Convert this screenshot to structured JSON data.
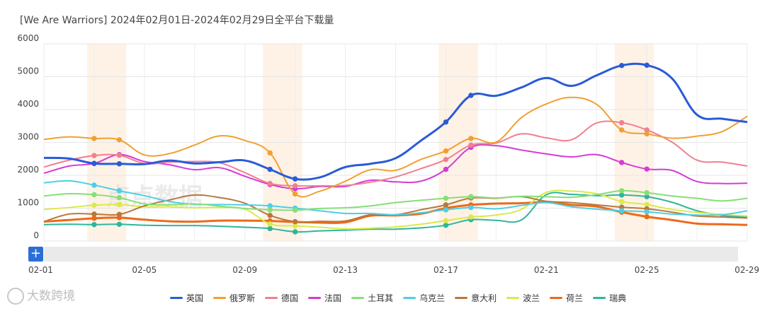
{
  "chart_data": {
    "type": "line",
    "title": "[We Are Warriors]  2024年02月01日-2024年02月29日全平台下载量",
    "xlabel": "",
    "ylabel": "",
    "ylim": [
      0,
      6000
    ],
    "yticks": [
      0,
      1000,
      2000,
      3000,
      4000,
      5000,
      6000
    ],
    "x": [
      "02-01",
      "02-02",
      "02-03",
      "02-04",
      "02-05",
      "02-06",
      "02-07",
      "02-08",
      "02-09",
      "02-10",
      "02-11",
      "02-12",
      "02-13",
      "02-14",
      "02-15",
      "02-16",
      "02-17",
      "02-18",
      "02-19",
      "02-20",
      "02-21",
      "02-22",
      "02-23",
      "02-24",
      "02-25",
      "02-26",
      "02-27",
      "02-28",
      "02-29"
    ],
    "xtick_labels": [
      "02-01",
      "02-05",
      "02-09",
      "02-13",
      "02-17",
      "02-21",
      "02-25",
      "02-29"
    ],
    "weekend_bands": [
      [
        "02-03",
        "02-04"
      ],
      [
        "02-10",
        "02-11"
      ],
      [
        "02-17",
        "02-18"
      ],
      [
        "02-24",
        "02-25"
      ]
    ],
    "grid": true,
    "legend_position": "bottom",
    "series": [
      {
        "name": "英国",
        "color": "#2a5bd7",
        "width": 3,
        "markers": [
          2,
          3,
          9,
          10,
          16,
          17,
          23,
          24
        ],
        "values": [
          2530,
          2510,
          2360,
          2350,
          2340,
          2450,
          2360,
          2400,
          2450,
          2180,
          1890,
          1940,
          2250,
          2350,
          2520,
          3050,
          3620,
          4430,
          4420,
          4670,
          4960,
          4720,
          5040,
          5340,
          5350,
          4950,
          3840,
          3720,
          3620
        ]
      },
      {
        "name": "俄罗斯",
        "color": "#f0a030",
        "width": 2,
        "markers": [
          2,
          3,
          9,
          10,
          16,
          17,
          23,
          24
        ],
        "values": [
          3090,
          3170,
          3120,
          3080,
          2620,
          2660,
          2920,
          3200,
          3060,
          2680,
          1430,
          1520,
          1820,
          2170,
          2150,
          2480,
          2740,
          3120,
          3010,
          3750,
          4170,
          4370,
          4160,
          3380,
          3260,
          3130,
          3190,
          3330,
          3800
        ]
      },
      {
        "name": "德国",
        "color": "#f08090",
        "width": 2,
        "markers": [
          2,
          3,
          9,
          10,
          16,
          17,
          23,
          24
        ],
        "values": [
          2250,
          2460,
          2600,
          2610,
          2360,
          2400,
          2420,
          2380,
          2080,
          1750,
          1680,
          1680,
          1690,
          1790,
          1950,
          2200,
          2480,
          2920,
          2980,
          3260,
          3140,
          3080,
          3590,
          3600,
          3380,
          3010,
          2460,
          2400,
          2280
        ]
      },
      {
        "name": "法国",
        "color": "#d63ad8",
        "width": 2,
        "markers": [
          2,
          3,
          9,
          10,
          16,
          17,
          23,
          24
        ],
        "values": [
          2060,
          2280,
          2360,
          2630,
          2420,
          2320,
          2170,
          2230,
          1970,
          1720,
          1590,
          1660,
          1660,
          1850,
          1800,
          1820,
          2180,
          2850,
          2900,
          2770,
          2650,
          2560,
          2630,
          2390,
          2190,
          2150,
          1810,
          1750,
          1760
        ]
      },
      {
        "name": "土耳其",
        "color": "#86df76",
        "width": 2,
        "markers": [
          2,
          3,
          9,
          10,
          16,
          17,
          23,
          24
        ],
        "values": [
          1370,
          1440,
          1410,
          1320,
          1130,
          1100,
          1130,
          1060,
          990,
          950,
          940,
          990,
          1010,
          1070,
          1170,
          1240,
          1300,
          1350,
          1310,
          1360,
          1350,
          1330,
          1410,
          1530,
          1470,
          1370,
          1300,
          1220,
          1300
        ]
      },
      {
        "name": "乌克兰",
        "color": "#4dcfe6",
        "width": 2,
        "markers": [
          2,
          3,
          9,
          10,
          16,
          17,
          23,
          24
        ],
        "values": [
          1770,
          1830,
          1700,
          1530,
          1380,
          1200,
          1120,
          1110,
          1100,
          1070,
          1000,
          920,
          840,
          840,
          800,
          860,
          950,
          1020,
          980,
          1080,
          1170,
          1040,
          970,
          920,
          890,
          820,
          790,
          800,
          920
        ]
      },
      {
        "name": "意大利",
        "color": "#b8793c",
        "width": 2,
        "markers": [
          2,
          3,
          9,
          10,
          16,
          17,
          23,
          24
        ],
        "values": [
          590,
          820,
          820,
          810,
          1070,
          1250,
          1400,
          1320,
          1150,
          780,
          590,
          600,
          610,
          800,
          800,
          950,
          1100,
          1310,
          1300,
          1350,
          1210,
          1170,
          1100,
          1030,
          980,
          880,
          760,
          730,
          700
        ]
      },
      {
        "name": "波兰",
        "color": "#dbe94a",
        "width": 2,
        "markers": [
          2,
          3,
          9,
          10,
          16,
          17,
          23,
          24
        ],
        "values": [
          960,
          1020,
          1090,
          1110,
          1040,
          1040,
          1010,
          1020,
          970,
          520,
          460,
          420,
          370,
          390,
          430,
          510,
          620,
          730,
          790,
          960,
          1480,
          1520,
          1440,
          1200,
          1110,
          960,
          870,
          810,
          760
        ]
      },
      {
        "name": "荷兰",
        "color": "#ec6a18",
        "width": 3,
        "markers": [
          2,
          3,
          9,
          10,
          16,
          17,
          23,
          24
        ],
        "values": [
          590,
          640,
          690,
          710,
          650,
          600,
          590,
          620,
          620,
          610,
          580,
          560,
          570,
          770,
          780,
          830,
          1000,
          1100,
          1140,
          1150,
          1180,
          1100,
          1050,
          880,
          740,
          640,
          530,
          510,
          490
        ]
      },
      {
        "name": "瑞典",
        "color": "#2fb59c",
        "width": 2,
        "markers": [
          2,
          3,
          9,
          10,
          16,
          17,
          23,
          24
        ],
        "values": [
          500,
          510,
          500,
          510,
          480,
          470,
          470,
          450,
          420,
          380,
          280,
          310,
          330,
          360,
          360,
          400,
          480,
          650,
          630,
          640,
          1410,
          1420,
          1380,
          1400,
          1350,
          1180,
          920,
          780,
          730
        ]
      }
    ],
    "watermark": "点点数据"
  },
  "controls": {
    "zoom_label": "+"
  },
  "footer": {
    "brand_watermark": "大数跨境"
  }
}
